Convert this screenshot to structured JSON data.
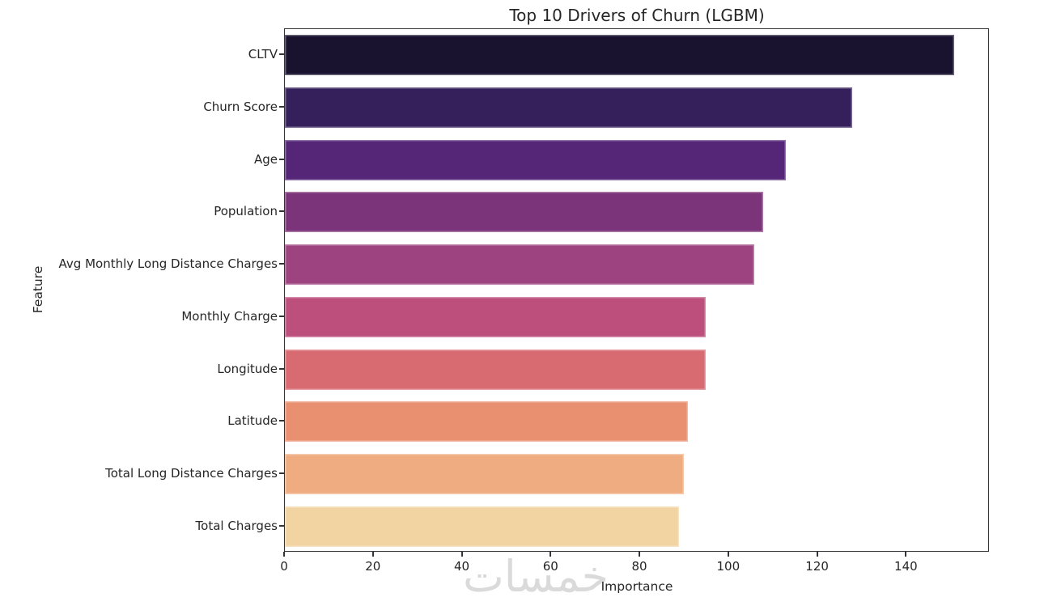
{
  "figure": {
    "watermark": "خمسات",
    "background_color": "#ffffff",
    "spine_color": "#333338",
    "text_color": "#262626",
    "watermark_color": "#dadada"
  },
  "chart_data": {
    "type": "bar",
    "orientation": "horizontal",
    "title": "Top 10 Drivers of Churn (LGBM)",
    "xlabel": "Importance",
    "ylabel": "Feature",
    "categories": [
      "CLTV",
      "Churn Score",
      "Age",
      "Population",
      "Avg Monthly Long Distance Charges",
      "Monthly Charge",
      "Longitude",
      "Latitude",
      "Total Long Distance Charges",
      "Total Charges"
    ],
    "values": [
      151,
      128,
      113,
      108,
      106,
      95,
      95,
      91,
      90,
      89
    ],
    "bar_colors": [
      "#1a1330",
      "#36205b",
      "#552577",
      "#7b3479",
      "#9d4480",
      "#bc4f7b",
      "#d76b71",
      "#e8906f",
      "#efac80",
      "#f2d3a2"
    ],
    "xlim": [
      0,
      158.7
    ],
    "xticks": [
      0,
      20,
      40,
      60,
      80,
      100,
      120,
      140
    ],
    "grid": false,
    "legend": null,
    "palette": "magma"
  }
}
